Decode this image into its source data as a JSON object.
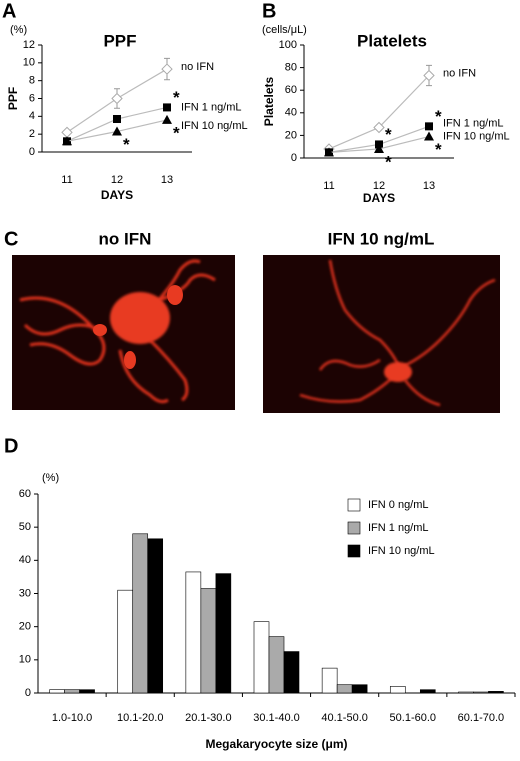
{
  "chart_data": [
    {
      "type": "line",
      "panel": "A",
      "title": "PPF",
      "unit": "(%)",
      "y_label": "PPF",
      "x_label": "DAYS",
      "categories": [
        "11",
        "12",
        "13"
      ],
      "ylim": [
        0,
        12
      ],
      "yticks": [
        0,
        2,
        4,
        6,
        8,
        10,
        12
      ],
      "line_color": "#bbbbbb",
      "series": [
        {
          "name": "no IFN",
          "marker": "diamond",
          "color": "#ffffff",
          "values": [
            2.2,
            6.0,
            9.3
          ],
          "errors": [
            0.2,
            1.1,
            1.2
          ]
        },
        {
          "name": "IFN 1 ng/mL",
          "marker": "square",
          "color": "#000000",
          "values": [
            1.2,
            3.7,
            5.0
          ],
          "sig": [
            null,
            null,
            "*"
          ]
        },
        {
          "name": "IFN 10 ng/mL",
          "marker": "triangle",
          "color": "#000000",
          "values": [
            1.2,
            2.3,
            3.6
          ],
          "sig": [
            null,
            "*",
            "*"
          ]
        }
      ]
    },
    {
      "type": "line",
      "panel": "B",
      "title": "Platelets",
      "unit": "(cells/μL)",
      "y_label": "Platelets",
      "x_label": "DAYS",
      "categories": [
        "11",
        "12",
        "13"
      ],
      "ylim": [
        0,
        100
      ],
      "yticks": [
        0,
        20,
        40,
        60,
        80,
        100
      ],
      "line_color": "#bbbbbb",
      "series": [
        {
          "name": "no IFN",
          "marker": "diamond",
          "color": "#ffffff",
          "values": [
            8,
            27,
            73
          ],
          "errors": [
            1,
            2,
            9
          ]
        },
        {
          "name": "IFN 1 ng/mL",
          "marker": "square",
          "color": "#000000",
          "values": [
            5,
            12,
            28
          ],
          "sig": [
            null,
            "*",
            "*"
          ]
        },
        {
          "name": "IFN 10 ng/mL",
          "marker": "triangle",
          "color": "#000000",
          "values": [
            5,
            8,
            19
          ],
          "sig": [
            null,
            "*",
            "*"
          ]
        }
      ]
    },
    {
      "type": "bar",
      "panel": "D",
      "unit": "(%)",
      "x_label": "Megakaryocyte size (μm)",
      "categories": [
        "1.0-10.0",
        "10.1-20.0",
        "20.1-30.0",
        "30.1-40.0",
        "40.1-50.0",
        "50.1-60.0",
        "60.1-70.0"
      ],
      "ylim": [
        0,
        60
      ],
      "yticks": [
        0,
        10,
        20,
        30,
        40,
        50,
        60
      ],
      "series": [
        {
          "name": "IFN 0 ng/mL",
          "color": "#ffffff",
          "values": [
            1,
            31,
            36.5,
            21.5,
            7.5,
            2,
            0.3
          ]
        },
        {
          "name": "IFN 1 ng/mL",
          "color": "#aaaaaa",
          "values": [
            1,
            48,
            31.5,
            17,
            2.5,
            0,
            0.3
          ]
        },
        {
          "name": "IFN 10 ng/mL",
          "color": "#000000",
          "values": [
            1,
            46.5,
            36,
            12.5,
            2.5,
            1,
            0.5
          ]
        }
      ]
    }
  ],
  "panel_c": {
    "label": "C",
    "images": [
      {
        "title": "no IFN"
      },
      {
        "title": "IFN 10 ng/mL"
      }
    ]
  }
}
